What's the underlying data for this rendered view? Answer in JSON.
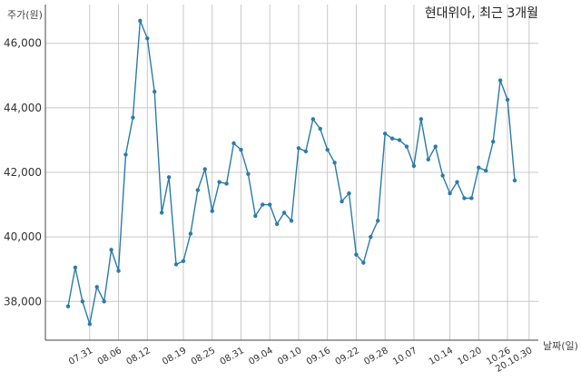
{
  "chart_data": {
    "type": "line",
    "title": "현대위아, 최근 3개월",
    "ylabel": "주가(원)",
    "xlabel": "날짜(일)",
    "ylim": [
      36800,
      47200
    ],
    "y_ticks": [
      38000,
      40000,
      42000,
      44000,
      46000
    ],
    "y_tick_labels": [
      "38,000",
      "40,000",
      "42,000",
      "44,000",
      "46,000"
    ],
    "x_tick_labels": [
      "07.31",
      "08.06",
      "08.12",
      "08.19",
      "08.25",
      "08.31",
      "09.04",
      "09.10",
      "09.16",
      "09.22",
      "09.28",
      "10.07",
      "10.14",
      "10.20",
      "10.26",
      "20.10.30"
    ],
    "x_tick_positions": [
      3,
      7,
      11,
      16,
      20,
      24,
      28,
      32,
      36,
      40,
      44,
      48,
      53,
      57,
      61,
      64
    ],
    "grid": "both",
    "series_color": "#2b7bab",
    "series": [
      {
        "values": [
          37850,
          39050,
          38000,
          37300,
          38450,
          38000,
          39600,
          38950,
          42550,
          43700,
          46700,
          46150,
          44500,
          40750,
          41850,
          39150,
          39250,
          40100,
          41450,
          42100,
          40800,
          41700,
          41650,
          42900,
          42700,
          41950,
          40650,
          41000,
          41000,
          40400,
          40750,
          40500,
          42750,
          42650,
          43650,
          43350,
          42700,
          42300,
          41100,
          41350,
          39450,
          39200,
          40000,
          40500,
          43200,
          43050,
          43000,
          42800,
          42200,
          43650,
          42400,
          42800,
          41900,
          41350,
          41700,
          41200,
          41200,
          42150,
          42050,
          42950,
          44850,
          44250,
          41750
        ]
      }
    ]
  }
}
